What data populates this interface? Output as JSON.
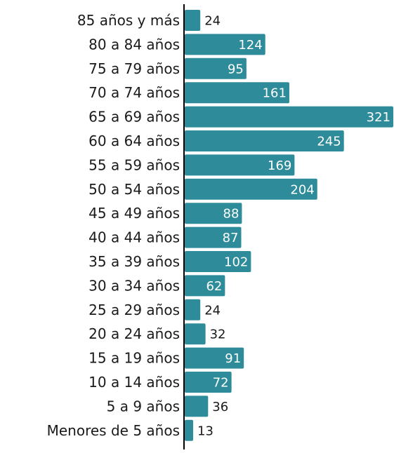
{
  "chart_data": {
    "type": "bar",
    "orientation": "horizontal",
    "title": "",
    "xlabel": "",
    "ylabel": "",
    "categories": [
      "85 años y más",
      "80 a 84 años",
      "75 a 79 años",
      "70 a 74 años",
      "65 a 69 años",
      "60 a 64 años",
      "55 a 59 años",
      "50 a 54 años",
      "45 a 49 años",
      "40 a 44 años",
      "35 a 39 años",
      "30 a 34 años",
      "25 a 29 años",
      "20 a 24 años",
      "15 a 19 años",
      "10 a 14 años",
      "5 a 9 años",
      "Menores de 5 años"
    ],
    "values": [
      24,
      124,
      95,
      161,
      321,
      245,
      169,
      204,
      88,
      87,
      102,
      62,
      24,
      32,
      91,
      72,
      36,
      13
    ],
    "xlim": [
      0,
      321
    ],
    "grid": false,
    "legend": "none",
    "bar_color": "#2e8b9a",
    "axis_color": "#000000",
    "label_color": "#1a1a1a"
  }
}
